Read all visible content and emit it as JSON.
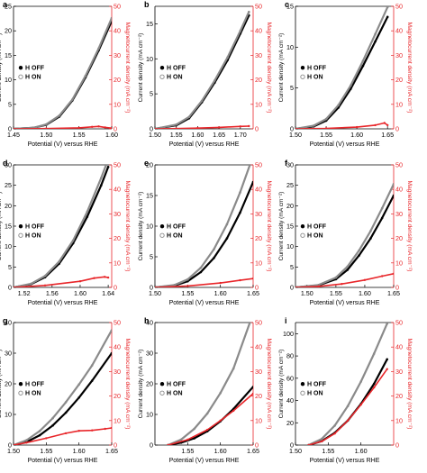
{
  "colors": {
    "axis": "#000000",
    "left_text": "#000000",
    "right_axis": "#e8262a",
    "h_off": "#000000",
    "h_on": "#8a8a8a",
    "magneto": "#e8262a"
  },
  "chart_data": [
    {
      "type": "line",
      "panel": "a",
      "xlabel": "Potential (V) versus RHE",
      "ylabel": "Current density (mA cm⁻²)",
      "ylabel2": "Magnetocurrent density (mA cm⁻²)",
      "xlim": [
        1.45,
        1.6
      ],
      "ylim": [
        0,
        25
      ],
      "ylim2": [
        0,
        50
      ],
      "xticks": [
        1.45,
        1.5,
        1.55,
        1.6
      ],
      "xtick_labels": [
        "1.45",
        "1.50",
        "1.55",
        "1.60"
      ],
      "yticks": [
        0,
        5,
        10,
        15,
        20,
        25
      ],
      "ytick_labels": [
        "0",
        "5",
        "10",
        "15",
        "20",
        "25"
      ],
      "y2ticks": [
        0,
        10,
        20,
        30,
        40,
        50
      ],
      "y2tick_labels": [
        "0",
        "10",
        "20",
        "30",
        "40",
        "50"
      ],
      "legend": [
        "H OFF",
        "H ON"
      ],
      "legend_position": "center-left",
      "series": [
        {
          "name": "H OFF",
          "x": [
            1.45,
            1.48,
            1.5,
            1.52,
            1.54,
            1.56,
            1.58,
            1.6
          ],
          "y": [
            0,
            0.2,
            0.8,
            2.5,
            5.8,
            10.5,
            16.0,
            22.0
          ]
        },
        {
          "name": "H ON",
          "x": [
            1.45,
            1.48,
            1.5,
            1.52,
            1.54,
            1.56,
            1.58,
            1.6
          ],
          "y": [
            0,
            0.2,
            0.9,
            2.7,
            6.0,
            10.8,
            16.4,
            22.6
          ]
        },
        {
          "name": "Magnetocurrent",
          "axis": "right",
          "x": [
            1.45,
            1.5,
            1.55,
            1.57,
            1.58,
            1.59,
            1.6
          ],
          "y": [
            0,
            0.1,
            0.4,
            0.8,
            1.0,
            0.6,
            0.3
          ]
        }
      ]
    },
    {
      "type": "line",
      "panel": "b",
      "xlabel": "Potential (V) versus RHE",
      "ylabel": "Current density (mA cm⁻²)",
      "ylabel2": "Magnetocurrent density (mA cm⁻²)",
      "xlim": [
        1.5,
        1.73
      ],
      "ylim": [
        0,
        17.5
      ],
      "ylim2": [
        0,
        50
      ],
      "xticks": [
        1.5,
        1.55,
        1.6,
        1.65,
        1.7
      ],
      "xtick_labels": [
        "1.50",
        "1.55",
        "1.60",
        "1.65",
        "1.70"
      ],
      "yticks": [
        0,
        5,
        10,
        15
      ],
      "ytick_labels": [
        "0",
        "5",
        "10",
        "15"
      ],
      "y2ticks": [
        0,
        10,
        20,
        30,
        40,
        50
      ],
      "y2tick_labels": [
        "0",
        "10",
        "20",
        "30",
        "40",
        "50"
      ],
      "legend": [
        "H OFF",
        "H ON"
      ],
      "legend_position": "center-left",
      "series": [
        {
          "name": "H OFF",
          "x": [
            1.5,
            1.55,
            1.58,
            1.61,
            1.64,
            1.67,
            1.7,
            1.72
          ],
          "y": [
            0,
            0.5,
            1.5,
            3.8,
            6.6,
            9.8,
            13.6,
            16.2
          ]
        },
        {
          "name": "H ON",
          "x": [
            1.5,
            1.55,
            1.58,
            1.61,
            1.64,
            1.67,
            1.7,
            1.72
          ],
          "y": [
            0,
            0.6,
            1.7,
            4.0,
            6.9,
            10.2,
            14.0,
            16.7
          ]
        },
        {
          "name": "Magnetocurrent",
          "axis": "right",
          "x": [
            1.5,
            1.55,
            1.6,
            1.65,
            1.7,
            1.72
          ],
          "y": [
            0,
            0.1,
            0.3,
            0.6,
            1.0,
            1.1
          ]
        }
      ]
    },
    {
      "type": "line",
      "panel": "c",
      "xlabel": "Potential (V) versus RHE",
      "ylabel": "Current density (mA cm⁻²)",
      "ylabel2": "Magnetocurrent density (mA cm⁻²)",
      "xlim": [
        1.5,
        1.66
      ],
      "ylim": [
        0,
        15
      ],
      "ylim2": [
        0,
        50
      ],
      "xticks": [
        1.5,
        1.55,
        1.6,
        1.65
      ],
      "xtick_labels": [
        "1.50",
        "1.55",
        "1.60",
        "1.65"
      ],
      "yticks": [
        0,
        5,
        10,
        15
      ],
      "ytick_labels": [
        "0",
        "5",
        "10",
        "15"
      ],
      "y2ticks": [
        0,
        10,
        20,
        30,
        40,
        50
      ],
      "y2tick_labels": [
        "0",
        "10",
        "20",
        "30",
        "40",
        "50"
      ],
      "legend": [
        "H OFF",
        "H ON"
      ],
      "legend_position": "center-left",
      "series": [
        {
          "name": "H OFF",
          "x": [
            1.5,
            1.53,
            1.55,
            1.57,
            1.59,
            1.61,
            1.63,
            1.65
          ],
          "y": [
            0,
            0.3,
            1.0,
            2.6,
            4.9,
            7.7,
            10.7,
            13.7
          ]
        },
        {
          "name": "H ON",
          "x": [
            1.5,
            1.53,
            1.55,
            1.57,
            1.59,
            1.61,
            1.63,
            1.65
          ],
          "y": [
            0,
            0.4,
            1.2,
            2.9,
            5.3,
            8.3,
            11.6,
            14.9
          ]
        },
        {
          "name": "Magnetocurrent",
          "axis": "right",
          "x": [
            1.5,
            1.55,
            1.6,
            1.63,
            1.645,
            1.65
          ],
          "y": [
            0,
            0.2,
            0.7,
            1.5,
            2.4,
            1.5
          ]
        }
      ]
    },
    {
      "type": "line",
      "panel": "d",
      "xlabel": "Potential (V) versus RHE",
      "ylabel": "Current density (mA cm⁻²)",
      "ylabel2": "Magnetocurrent density (mA cm⁻²)",
      "xlim": [
        1.505,
        1.645
      ],
      "ylim": [
        0,
        30
      ],
      "ylim2": [
        0,
        50
      ],
      "xticks": [
        1.52,
        1.56,
        1.6,
        1.64
      ],
      "xtick_labels": [
        "1.52",
        "1.56",
        "1.60",
        "1.64"
      ],
      "yticks": [
        0,
        5,
        10,
        15,
        20,
        25,
        30
      ],
      "ytick_labels": [
        "0",
        "5",
        "10",
        "15",
        "20",
        "25",
        "30"
      ],
      "y2ticks": [
        0,
        10,
        20,
        30,
        40,
        50
      ],
      "y2tick_labels": [
        "0",
        "10",
        "20",
        "30",
        "40",
        "50"
      ],
      "legend": [
        "H OFF",
        "H ON"
      ],
      "legend_position": "center-left",
      "series": [
        {
          "name": "H OFF",
          "x": [
            1.505,
            1.53,
            1.55,
            1.57,
            1.59,
            1.61,
            1.63,
            1.64
          ],
          "y": [
            0,
            0.8,
            2.5,
            5.8,
            10.8,
            17.3,
            25.0,
            29.5
          ]
        },
        {
          "name": "H ON",
          "x": [
            1.505,
            1.53,
            1.55,
            1.57,
            1.59,
            1.61,
            1.63,
            1.637
          ],
          "y": [
            0,
            0.9,
            2.8,
            6.3,
            11.5,
            18.5,
            26.8,
            30.0
          ]
        },
        {
          "name": "Magnetocurrent",
          "axis": "right",
          "x": [
            1.505,
            1.55,
            1.6,
            1.62,
            1.635,
            1.64
          ],
          "y": [
            0,
            0.8,
            2.5,
            3.8,
            4.3,
            4.0
          ]
        }
      ]
    },
    {
      "type": "line",
      "panel": "e",
      "xlabel": "Potential (V) versus RHE",
      "ylabel": "Current density (mA cm⁻²)",
      "ylabel2": "Magnetocurrent density (mA cm⁻²)",
      "xlim": [
        1.5,
        1.65
      ],
      "ylim": [
        0,
        20
      ],
      "ylim2": [
        0,
        50
      ],
      "xticks": [
        1.5,
        1.55,
        1.6,
        1.65
      ],
      "xtick_labels": [
        "1.50",
        "1.55",
        "1.60",
        "1.65"
      ],
      "yticks": [
        0,
        5,
        10,
        15,
        20
      ],
      "ytick_labels": [
        "0",
        "5",
        "10",
        "15",
        "20"
      ],
      "y2ticks": [
        0,
        10,
        20,
        30,
        40,
        50
      ],
      "y2tick_labels": [
        "0",
        "10",
        "20",
        "30",
        "40",
        "50"
      ],
      "legend": [
        "H OFF",
        "H ON"
      ],
      "legend_position": "center-left",
      "series": [
        {
          "name": "H OFF",
          "x": [
            1.5,
            1.53,
            1.55,
            1.57,
            1.59,
            1.61,
            1.63,
            1.65
          ],
          "y": [
            0,
            0.3,
            1.0,
            2.5,
            4.8,
            8.0,
            12.2,
            17.2
          ]
        },
        {
          "name": "H ON",
          "x": [
            1.5,
            1.53,
            1.55,
            1.57,
            1.59,
            1.61,
            1.63,
            1.645
          ],
          "y": [
            0,
            0.4,
            1.3,
            3.2,
            6.2,
            10.3,
            15.5,
            20.0
          ]
        },
        {
          "name": "Magnetocurrent",
          "axis": "right",
          "x": [
            1.5,
            1.55,
            1.6,
            1.63,
            1.65
          ],
          "y": [
            0,
            0.6,
            1.8,
            2.9,
            3.6
          ]
        }
      ]
    },
    {
      "type": "line",
      "panel": "f",
      "xlabel": "Potential (V) versus RHE",
      "ylabel": "Current density (mA cm⁻²)",
      "ylabel2": "Magnetocurrent density (mA cm⁻²)",
      "xlim": [
        1.48,
        1.65
      ],
      "ylim": [
        0,
        30
      ],
      "ylim2": [
        0,
        50
      ],
      "xticks": [
        1.5,
        1.55,
        1.6,
        1.65
      ],
      "xtick_labels": [
        "1.50",
        "1.55",
        "1.60",
        "1.65"
      ],
      "yticks": [
        0,
        5,
        10,
        15,
        20,
        25,
        30
      ],
      "ytick_labels": [
        "0",
        "5",
        "10",
        "15",
        "20",
        "25",
        "30"
      ],
      "y2ticks": [
        0,
        10,
        20,
        30,
        40,
        50
      ],
      "y2tick_labels": [
        "0",
        "10",
        "20",
        "30",
        "40",
        "50"
      ],
      "legend": [
        "H OFF",
        "H ON"
      ],
      "legend_position": "center-left",
      "series": [
        {
          "name": "H OFF",
          "x": [
            1.48,
            1.52,
            1.55,
            1.57,
            1.59,
            1.61,
            1.63,
            1.65
          ],
          "y": [
            0,
            0.5,
            2.0,
            4.3,
            7.8,
            12.0,
            17.0,
            22.5
          ]
        },
        {
          "name": "H ON",
          "x": [
            1.48,
            1.52,
            1.55,
            1.57,
            1.59,
            1.61,
            1.63,
            1.65
          ],
          "y": [
            0,
            0.6,
            2.4,
            5.1,
            9.0,
            13.8,
            19.4,
            25.3
          ]
        },
        {
          "name": "Magnetocurrent",
          "axis": "right",
          "x": [
            1.48,
            1.52,
            1.56,
            1.6,
            1.63,
            1.65
          ],
          "y": [
            0,
            0.4,
            1.4,
            3.0,
            4.6,
            5.6
          ]
        }
      ]
    },
    {
      "type": "line",
      "panel": "g",
      "xlabel": "Potential (V) versus RHE",
      "ylabel": "Current density (mA cm⁻²)",
      "ylabel2": "Magnetocurrent density (mA cm⁻²)",
      "xlim": [
        1.5,
        1.65
      ],
      "ylim": [
        0,
        40
      ],
      "ylim2": [
        0,
        50
      ],
      "xticks": [
        1.5,
        1.55,
        1.6,
        1.65
      ],
      "xtick_labels": [
        "1.50",
        "1.55",
        "1.60",
        "1.65"
      ],
      "yticks": [
        0,
        10,
        20,
        30,
        40
      ],
      "ytick_labels": [
        "0",
        "10",
        "20",
        "30",
        "40"
      ],
      "y2ticks": [
        0,
        10,
        20,
        30,
        40,
        50
      ],
      "y2tick_labels": [
        "0",
        "10",
        "20",
        "30",
        "40",
        "50"
      ],
      "legend": [
        "H OFF",
        "H ON"
      ],
      "legend_position": "center-left",
      "series": [
        {
          "name": "H OFF",
          "x": [
            1.5,
            1.52,
            1.54,
            1.56,
            1.58,
            1.6,
            1.62,
            1.65
          ],
          "y": [
            0,
            1.0,
            3.2,
            6.4,
            10.6,
            15.5,
            21.0,
            30.0
          ]
        },
        {
          "name": "H ON",
          "x": [
            1.5,
            1.52,
            1.54,
            1.56,
            1.58,
            1.6,
            1.62,
            1.65
          ],
          "y": [
            0,
            1.6,
            4.6,
            8.8,
            14.0,
            19.8,
            26.0,
            37.5
          ]
        },
        {
          "name": "Magnetocurrent",
          "axis": "right",
          "x": [
            1.5,
            1.52,
            1.55,
            1.58,
            1.6,
            1.62,
            1.64,
            1.65
          ],
          "y": [
            0,
            1.0,
            2.8,
            4.8,
            5.8,
            6.0,
            6.6,
            7.0
          ]
        }
      ]
    },
    {
      "type": "line",
      "panel": "h",
      "xlabel": "Potential (V) versus RHE",
      "ylabel": "Current density (mA cm⁻²)",
      "ylabel2": "Magnetocurrent density (mA cm⁻²)",
      "xlim": [
        1.5,
        1.65
      ],
      "ylim": [
        0,
        40
      ],
      "ylim2": [
        0,
        50
      ],
      "xticks": [
        1.55,
        1.6,
        1.65
      ],
      "xtick_labels": [
        "1.55",
        "1.60",
        "1.65"
      ],
      "yticks": [
        0,
        10,
        20,
        30,
        40
      ],
      "ytick_labels": [
        "0",
        "10",
        "20",
        "30",
        "40"
      ],
      "y2ticks": [
        0,
        10,
        20,
        30,
        40,
        50
      ],
      "y2tick_labels": [
        "0",
        "10",
        "20",
        "30",
        "40",
        "50"
      ],
      "legend": [
        "H OFF",
        "H ON"
      ],
      "legend_position": "center-left",
      "series": [
        {
          "name": "H OFF",
          "x": [
            1.52,
            1.54,
            1.56,
            1.58,
            1.6,
            1.62,
            1.65
          ],
          "y": [
            0,
            0.8,
            2.2,
            4.5,
            7.8,
            11.8,
            19.0
          ]
        },
        {
          "name": "H ON",
          "x": [
            1.52,
            1.54,
            1.56,
            1.58,
            1.6,
            1.62,
            1.645
          ],
          "y": [
            0,
            1.8,
            5.3,
            10.3,
            17.0,
            25.0,
            40.0
          ]
        },
        {
          "name": "Magnetocurrent",
          "axis": "right",
          "x": [
            1.52,
            1.55,
            1.58,
            1.6,
            1.62,
            1.65
          ],
          "y": [
            0,
            2.2,
            6.2,
            10.0,
            14.0,
            21.0
          ]
        }
      ]
    },
    {
      "type": "line",
      "panel": "i",
      "xlabel": "Potential (V) versus RHE",
      "ylabel": "Current density (mA cm⁻²)",
      "ylabel2": "Magnetocurrent density (mA cm⁻²)",
      "xlim": [
        1.5,
        1.65
      ],
      "ylim": [
        0,
        110
      ],
      "ylim2": [
        0,
        50
      ],
      "xticks": [
        1.5,
        1.55,
        1.6
      ],
      "xtick_labels": [
        "1.50",
        "1.55",
        "1.60"
      ],
      "yticks": [
        0,
        20,
        40,
        60,
        80,
        100
      ],
      "ytick_labels": [
        "0",
        "20",
        "40",
        "60",
        "80",
        "100"
      ],
      "y2ticks": [
        0,
        10,
        20,
        30,
        40,
        50
      ],
      "y2tick_labels": [
        "0",
        "10",
        "20",
        "30",
        "40",
        "50"
      ],
      "legend": [
        "H OFF",
        "H ON"
      ],
      "legend_position": "center-left",
      "series": [
        {
          "name": "H OFF",
          "x": [
            1.52,
            1.54,
            1.56,
            1.58,
            1.6,
            1.62,
            1.64
          ],
          "y": [
            0,
            3.5,
            11.0,
            22.0,
            37.0,
            55.0,
            77.0
          ]
        },
        {
          "name": "H ON",
          "x": [
            1.52,
            1.54,
            1.56,
            1.58,
            1.6,
            1.62,
            1.64
          ],
          "y": [
            0,
            5.5,
            17.5,
            35.0,
            57.0,
            82.0,
            109.0
          ]
        },
        {
          "name": "Magnetocurrent",
          "axis": "right",
          "x": [
            1.52,
            1.54,
            1.56,
            1.58,
            1.6,
            1.62,
            1.64
          ],
          "y": [
            0,
            1.5,
            4.7,
            10.0,
            16.5,
            23.5,
            31.0
          ]
        }
      ]
    }
  ]
}
